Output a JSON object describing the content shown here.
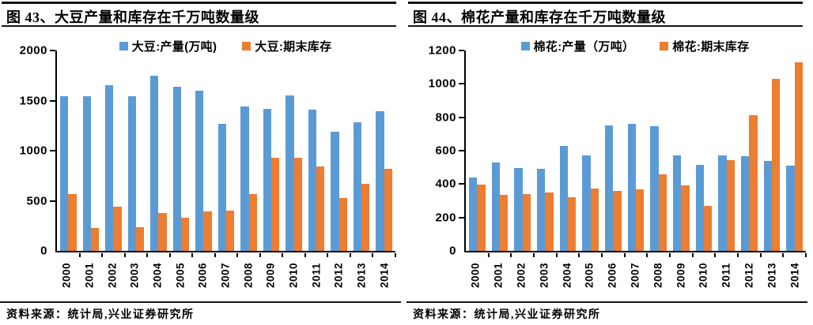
{
  "colors": {
    "production_blue": "#5B9BD5",
    "inventory_orange": "#ED7D31",
    "axis_black": "#000000",
    "rule_black": "#141414"
  },
  "panels": [
    {
      "title": "图 43、大豆产量和库存在千万吨数量级",
      "source": "资料来源：统计局,兴业证券研究所"
    },
    {
      "title": "图 44、棉花产量和库存在千万吨数量级",
      "source": "资料来源：统计局,兴业证券研究所"
    }
  ],
  "chart_data": [
    {
      "type": "bar",
      "title": "图 43、大豆产量和库存在千万吨数量级",
      "categories": [
        "2000",
        "2001",
        "2002",
        "2003",
        "2004",
        "2005",
        "2006",
        "2007",
        "2008",
        "2009",
        "2010",
        "2011",
        "2012",
        "2013",
        "2014"
      ],
      "series": [
        {
          "name": "大豆:产量(万吨)",
          "color_key": "production_blue",
          "values": [
            1540,
            1540,
            1650,
            1540,
            1750,
            1640,
            1600,
            1270,
            1440,
            1420,
            1550,
            1410,
            1190,
            1280,
            1390
          ]
        },
        {
          "name": "大豆:期末库存",
          "color_key": "inventory_orange",
          "values": [
            570,
            230,
            445,
            235,
            380,
            330,
            390,
            400,
            570,
            930,
            930,
            845,
            525,
            670,
            820
          ]
        }
      ],
      "xlabel": "",
      "ylabel": "",
      "ylim": [
        0,
        2000
      ],
      "yticks": [
        0,
        500,
        1000,
        1500,
        2000
      ],
      "grid": false,
      "legend_position": "top"
    },
    {
      "type": "bar",
      "title": "图 44、棉花产量和库存在千万吨数量级",
      "categories": [
        "2000",
        "2001",
        "2002",
        "2003",
        "2004",
        "2005",
        "2006",
        "2007",
        "2008",
        "2009",
        "2010",
        "2011",
        "2012",
        "2013",
        "2014"
      ],
      "series": [
        {
          "name": "棉花:产量（万吨）",
          "color_key": "production_blue",
          "values": [
            440,
            530,
            495,
            490,
            630,
            570,
            750,
            760,
            745,
            570,
            515,
            570,
            565,
            540,
            510
          ]
        },
        {
          "name": "棉花:期末库存",
          "color_key": "inventory_orange",
          "values": [
            395,
            335,
            340,
            350,
            320,
            375,
            360,
            370,
            460,
            390,
            270,
            545,
            815,
            1030,
            1130
          ]
        }
      ],
      "xlabel": "",
      "ylabel": "",
      "ylim": [
        0,
        1200
      ],
      "yticks": [
        0,
        200,
        400,
        600,
        800,
        1000,
        1200
      ],
      "grid": false,
      "legend_position": "top"
    }
  ]
}
